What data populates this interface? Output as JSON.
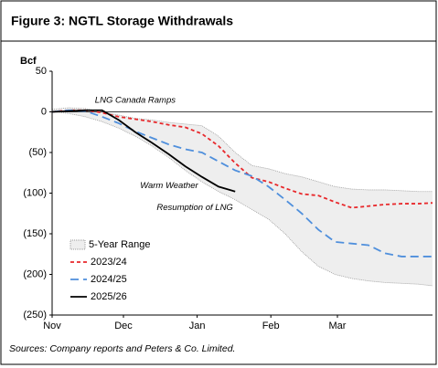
{
  "chart_data": {
    "type": "line",
    "title": "Figure 3: NGTL Storage Withdrawals",
    "y_label": "Bcf",
    "source": "Sources: Company reports and Peters & Co. Limited.",
    "x": [
      0,
      7,
      14,
      21,
      28,
      35,
      42,
      49,
      56,
      63,
      70,
      77,
      84,
      91,
      98,
      105,
      112,
      119,
      126,
      133,
      140,
      147,
      154,
      160
    ],
    "xlim": [
      0,
      160
    ],
    "xticks": [
      {
        "value": 0,
        "label": "Nov"
      },
      {
        "value": 30,
        "label": "Dec"
      },
      {
        "value": 61,
        "label": "Jan"
      },
      {
        "value": 92,
        "label": "Feb"
      },
      {
        "value": 120,
        "label": "Mar"
      }
    ],
    "ylim": [
      -250,
      50
    ],
    "yticks": [
      50,
      0,
      {
        "value": -50,
        "label": "(50)"
      },
      {
        "value": -100,
        "label": "(100)"
      },
      {
        "value": -150,
        "label": "(150)"
      },
      {
        "value": -200,
        "label": "(200)"
      },
      {
        "value": -250,
        "label": "(250)"
      }
    ],
    "legend": "lower left",
    "range": {
      "name": "5-Year Range",
      "color": "#eeeeee",
      "edge_color": "#999999",
      "high": [
        3,
        5,
        4,
        0,
        -4,
        -8,
        -10,
        -13,
        -15,
        -17,
        -30,
        -50,
        -66,
        -70,
        -76,
        -80,
        -86,
        -92,
        -95,
        -96,
        -96,
        -97,
        -98,
        -98
      ],
      "low": [
        0,
        -2,
        -6,
        -12,
        -20,
        -30,
        -42,
        -56,
        -72,
        -86,
        -98,
        -108,
        -120,
        -132,
        -150,
        -172,
        -190,
        -200,
        -205,
        -208,
        -210,
        -211,
        -212,
        -214
      ]
    },
    "series": [
      {
        "name": "2023/24",
        "color": "#e8282b",
        "dash": "4 3",
        "values": [
          0,
          2,
          2,
          -1,
          -6,
          -9,
          -12,
          -16,
          -19,
          -27,
          -42,
          -63,
          -81,
          -86,
          -94,
          -101,
          -103,
          -111,
          -118,
          -116,
          -114,
          -113,
          -113,
          -112
        ]
      },
      {
        "name": "2024/25",
        "color": "#4f8fdc",
        "dash": "9 5",
        "values": [
          0,
          2,
          1,
          -6,
          -14,
          -24,
          -32,
          -40,
          -46,
          -50,
          -61,
          -72,
          -79,
          -92,
          -108,
          -125,
          -145,
          -160,
          -162,
          -164,
          -174,
          -178,
          -178,
          -178
        ]
      },
      {
        "name": "2025/26",
        "color": "#000000",
        "dash": "",
        "values": [
          0,
          1,
          2,
          2,
          -10,
          -25,
          -38,
          -52,
          -67,
          -80,
          -92,
          -98,
          null,
          null,
          null,
          null,
          null,
          null,
          null,
          null,
          null,
          null,
          null,
          null
        ]
      }
    ],
    "annotations": [
      {
        "text": "LNG Canada Ramps",
        "x": 18,
        "y": 14
      },
      {
        "text": "Warm Weather",
        "x": 37,
        "y": -91
      },
      {
        "text": "Resumption of LNG",
        "x": 44,
        "y": -118
      }
    ]
  }
}
